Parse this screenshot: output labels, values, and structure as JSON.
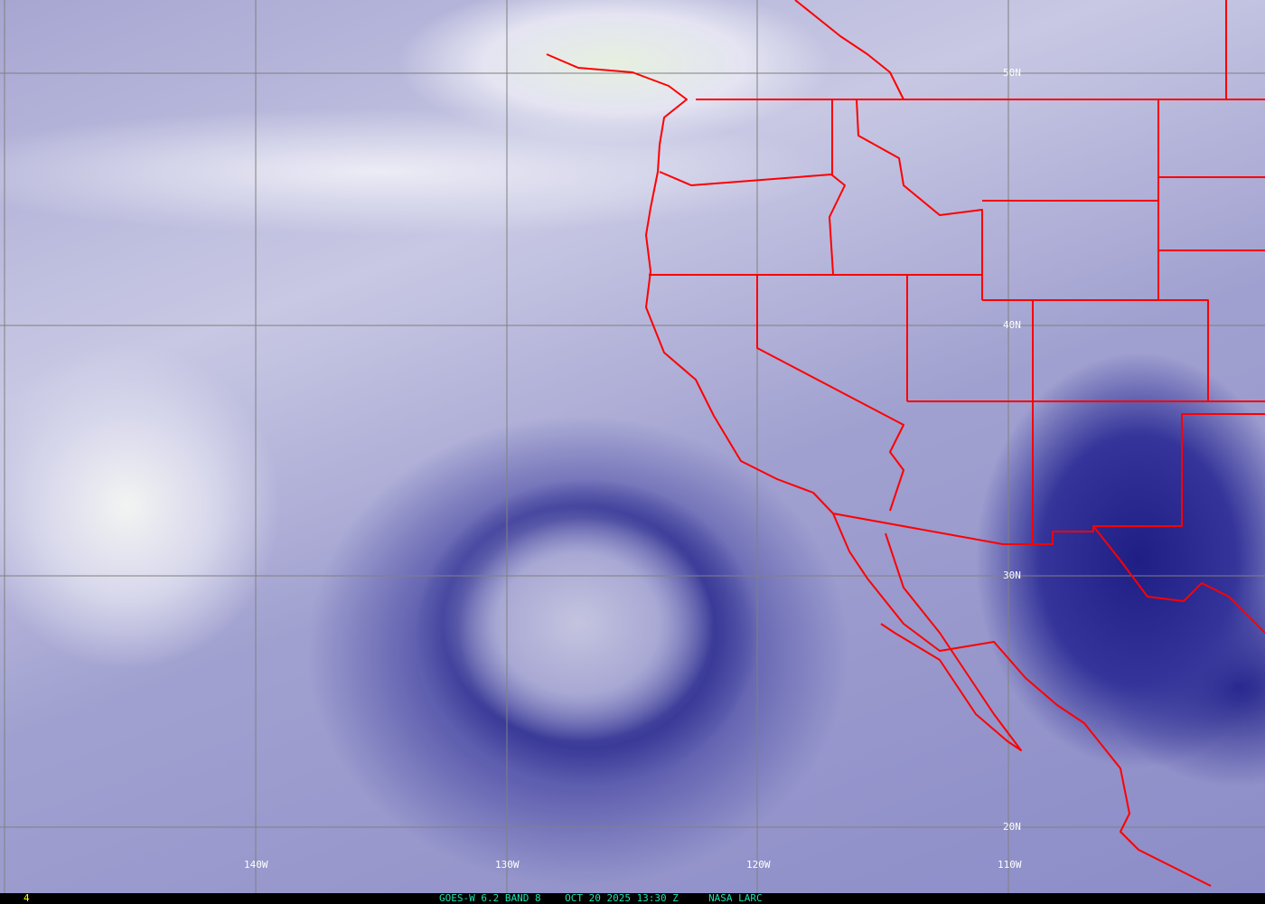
{
  "map": {
    "longitude_labels": [
      "140W",
      "130W",
      "120W",
      "110W"
    ],
    "latitude_labels": [
      "50N",
      "40N",
      "30N",
      "20N"
    ],
    "border_color": "#ff0000",
    "grid_color": "#808080"
  },
  "footer": {
    "frame_number": "4",
    "satellite_band": "GOES-W 6.2 BAND 8",
    "datetime": "OCT 20 2025 13:30 Z",
    "source": "NASA LARC"
  }
}
